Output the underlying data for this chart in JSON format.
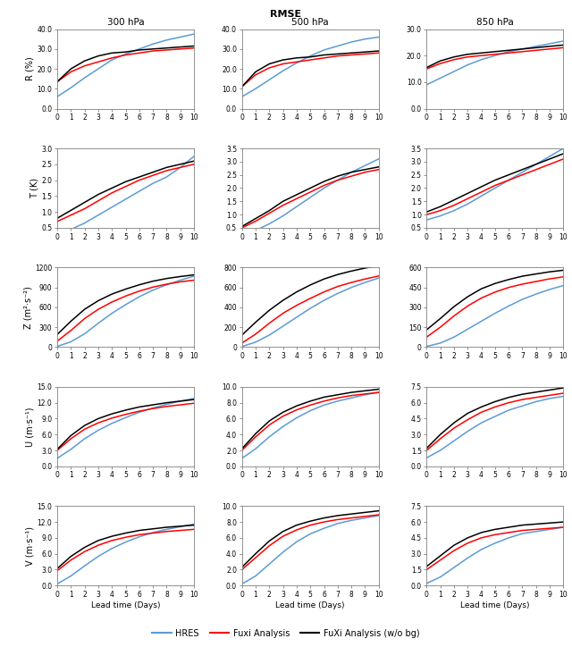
{
  "title": "RMSE",
  "columns": [
    "300 hPa",
    "500 hPa",
    "850 hPa"
  ],
  "rows": [
    "R (%)",
    "T (K)",
    "Z (m²·s⁻²)",
    "U (m·s⁻¹)",
    "V (m·s⁻¹)"
  ],
  "x": [
    0,
    1,
    2,
    3,
    4,
    5,
    6,
    7,
    8,
    9,
    10
  ],
  "data": {
    "R": {
      "300hPa": {
        "HRES": [
          6.0,
          10.5,
          15.5,
          20.0,
          24.5,
          27.5,
          30.0,
          32.5,
          34.5,
          36.0,
          37.5
        ],
        "Fuxi": [
          13.5,
          18.5,
          21.5,
          23.5,
          25.5,
          27.0,
          28.0,
          29.0,
          29.5,
          30.0,
          30.5
        ],
        "FuXi_wbg": [
          13.5,
          20.0,
          24.0,
          26.5,
          28.0,
          28.5,
          29.5,
          30.0,
          30.5,
          31.0,
          31.5
        ],
        "ylim": [
          0.0,
          40.0
        ],
        "yticks": [
          0.0,
          10.0,
          20.0,
          30.0,
          40.0
        ]
      },
      "500hPa": {
        "HRES": [
          6.0,
          10.0,
          14.5,
          19.0,
          23.0,
          26.5,
          29.5,
          31.5,
          33.5,
          35.0,
          36.0
        ],
        "Fuxi": [
          11.0,
          17.0,
          20.5,
          22.5,
          23.5,
          24.5,
          25.5,
          26.5,
          27.0,
          27.5,
          28.0
        ],
        "FuXi_wbg": [
          11.0,
          18.5,
          22.5,
          24.5,
          25.5,
          26.0,
          27.0,
          27.5,
          28.0,
          28.5,
          29.0
        ],
        "ylim": [
          0.0,
          40.0
        ],
        "yticks": [
          0.0,
          10.0,
          20.0,
          30.0,
          40.0
        ]
      },
      "850hPa": {
        "HRES": [
          9.0,
          11.5,
          14.0,
          16.5,
          18.5,
          20.0,
          21.5,
          22.5,
          23.5,
          24.5,
          25.5
        ],
        "Fuxi": [
          15.0,
          17.0,
          18.5,
          19.5,
          20.0,
          20.5,
          21.0,
          21.5,
          22.0,
          22.5,
          23.0
        ],
        "FuXi_wbg": [
          15.5,
          18.0,
          19.5,
          20.5,
          21.0,
          21.5,
          22.0,
          22.5,
          23.0,
          23.5,
          24.0
        ],
        "ylim": [
          0.0,
          30.0
        ],
        "yticks": [
          0.0,
          10.0,
          20.0,
          30.0
        ]
      }
    },
    "T": {
      "300hPa": {
        "HRES": [
          0.25,
          0.45,
          0.65,
          0.9,
          1.15,
          1.4,
          1.65,
          1.9,
          2.1,
          2.4,
          2.75
        ],
        "Fuxi": [
          0.7,
          0.9,
          1.1,
          1.35,
          1.6,
          1.8,
          2.0,
          2.15,
          2.3,
          2.4,
          2.5
        ],
        "FuXi_wbg": [
          0.8,
          1.05,
          1.3,
          1.55,
          1.75,
          1.95,
          2.1,
          2.25,
          2.4,
          2.5,
          2.6
        ],
        "ylim": [
          0.5,
          3.0
        ],
        "yticks": [
          0.5,
          1.0,
          1.5,
          2.0,
          2.5,
          3.0
        ]
      },
      "500hPa": {
        "HRES": [
          0.2,
          0.4,
          0.65,
          0.95,
          1.3,
          1.65,
          2.0,
          2.3,
          2.6,
          2.85,
          3.1
        ],
        "Fuxi": [
          0.5,
          0.75,
          1.05,
          1.35,
          1.6,
          1.85,
          2.1,
          2.3,
          2.45,
          2.6,
          2.7
        ],
        "FuXi_wbg": [
          0.55,
          0.85,
          1.15,
          1.5,
          1.75,
          2.0,
          2.25,
          2.45,
          2.6,
          2.7,
          2.8
        ],
        "ylim": [
          0.5,
          3.5
        ],
        "yticks": [
          0.5,
          1.0,
          1.5,
          2.0,
          2.5,
          3.0,
          3.5
        ]
      },
      "850hPa": {
        "HRES": [
          0.8,
          0.95,
          1.15,
          1.4,
          1.7,
          2.0,
          2.3,
          2.6,
          2.9,
          3.2,
          3.5
        ],
        "Fuxi": [
          1.0,
          1.15,
          1.35,
          1.6,
          1.85,
          2.1,
          2.3,
          2.5,
          2.7,
          2.9,
          3.1
        ],
        "FuXi_wbg": [
          1.1,
          1.3,
          1.55,
          1.8,
          2.05,
          2.3,
          2.5,
          2.7,
          2.9,
          3.1,
          3.3
        ],
        "ylim": [
          0.5,
          3.5
        ],
        "yticks": [
          0.5,
          1.0,
          1.5,
          2.0,
          2.5,
          3.0,
          3.5
        ]
      }
    },
    "Z": {
      "300hPa": {
        "HRES": [
          10,
          80,
          200,
          360,
          510,
          640,
          760,
          860,
          940,
          1010,
          1070
        ],
        "Fuxi": [
          90,
          250,
          430,
          570,
          680,
          770,
          845,
          905,
          950,
          985,
          1010
        ],
        "FuXi_wbg": [
          190,
          390,
          570,
          700,
          800,
          875,
          940,
          995,
          1035,
          1065,
          1090
        ],
        "ylim": [
          0,
          1200
        ],
        "yticks": [
          0,
          300,
          600,
          900,
          1200
        ]
      },
      "500hPa": {
        "HRES": [
          5,
          50,
          120,
          210,
          300,
          390,
          470,
          540,
          600,
          650,
          695
        ],
        "Fuxi": [
          40,
          130,
          240,
          340,
          420,
          490,
          555,
          610,
          650,
          685,
          715
        ],
        "FuXi_wbg": [
          120,
          250,
          370,
          470,
          555,
          625,
          685,
          730,
          765,
          795,
          820
        ],
        "ylim": [
          0,
          800
        ],
        "yticks": [
          0,
          200,
          400,
          600,
          800
        ]
      },
      "850hPa": {
        "HRES": [
          5,
          30,
          75,
          135,
          195,
          255,
          310,
          360,
          400,
          435,
          465
        ],
        "Fuxi": [
          75,
          150,
          235,
          310,
          370,
          415,
          450,
          475,
          495,
          515,
          530
        ],
        "FuXi_wbg": [
          130,
          215,
          305,
          380,
          440,
          480,
          510,
          535,
          552,
          568,
          580
        ],
        "ylim": [
          0,
          600
        ],
        "yticks": [
          0,
          150,
          300,
          450,
          600
        ]
      }
    },
    "U": {
      "300hPa": {
        "HRES": [
          1.5,
          3.2,
          5.2,
          6.8,
          8.1,
          9.2,
          10.2,
          11.0,
          11.7,
          12.3,
          12.8
        ],
        "Fuxi": [
          3.0,
          5.2,
          7.0,
          8.2,
          9.1,
          9.8,
          10.4,
          10.9,
          11.3,
          11.6,
          11.9
        ],
        "FuXi_wbg": [
          3.2,
          5.8,
          7.7,
          9.0,
          9.9,
          10.6,
          11.2,
          11.6,
          12.0,
          12.3,
          12.6
        ],
        "ylim": [
          0,
          15.0
        ],
        "yticks": [
          0,
          3.0,
          6.0,
          9.0,
          12.0,
          15.0
        ]
      },
      "500hPa": {
        "HRES": [
          1.0,
          2.2,
          3.7,
          5.0,
          6.1,
          7.0,
          7.7,
          8.2,
          8.6,
          9.0,
          9.3
        ],
        "Fuxi": [
          2.0,
          3.7,
          5.2,
          6.3,
          7.1,
          7.7,
          8.2,
          8.6,
          8.9,
          9.1,
          9.3
        ],
        "FuXi_wbg": [
          2.2,
          4.1,
          5.7,
          6.8,
          7.6,
          8.2,
          8.7,
          9.0,
          9.3,
          9.5,
          9.7
        ],
        "ylim": [
          0,
          10.0
        ],
        "yticks": [
          0,
          2.0,
          4.0,
          6.0,
          8.0,
          10.0
        ]
      },
      "850hPa": {
        "HRES": [
          0.8,
          1.5,
          2.4,
          3.3,
          4.1,
          4.7,
          5.3,
          5.7,
          6.1,
          6.4,
          6.6
        ],
        "Fuxi": [
          1.5,
          2.6,
          3.6,
          4.4,
          5.1,
          5.6,
          6.0,
          6.3,
          6.5,
          6.7,
          6.9
        ],
        "FuXi_wbg": [
          1.7,
          3.0,
          4.1,
          5.0,
          5.6,
          6.1,
          6.5,
          6.8,
          7.0,
          7.2,
          7.4
        ],
        "ylim": [
          0,
          7.5
        ],
        "yticks": [
          0,
          1.5,
          3.0,
          4.5,
          6.0,
          7.5
        ]
      }
    },
    "V": {
      "300hPa": {
        "HRES": [
          0.3,
          1.8,
          3.7,
          5.5,
          7.0,
          8.2,
          9.2,
          10.0,
          10.6,
          11.1,
          11.6
        ],
        "Fuxi": [
          2.8,
          4.8,
          6.4,
          7.6,
          8.5,
          9.1,
          9.6,
          9.9,
          10.2,
          10.4,
          10.6
        ],
        "FuXi_wbg": [
          3.2,
          5.5,
          7.2,
          8.5,
          9.3,
          9.9,
          10.4,
          10.7,
          11.0,
          11.2,
          11.4
        ],
        "ylim": [
          0,
          15.0
        ],
        "yticks": [
          0,
          3.0,
          6.0,
          9.0,
          12.0,
          15.0
        ]
      },
      "500hPa": {
        "HRES": [
          0.2,
          1.2,
          2.7,
          4.2,
          5.5,
          6.5,
          7.2,
          7.8,
          8.2,
          8.5,
          8.8
        ],
        "Fuxi": [
          2.0,
          3.5,
          5.0,
          6.2,
          7.0,
          7.6,
          8.0,
          8.3,
          8.5,
          8.7,
          8.9
        ],
        "FuXi_wbg": [
          2.3,
          4.0,
          5.6,
          6.8,
          7.6,
          8.1,
          8.5,
          8.8,
          9.0,
          9.2,
          9.4
        ],
        "ylim": [
          0,
          10.0
        ],
        "yticks": [
          0,
          2.0,
          4.0,
          6.0,
          8.0,
          10.0
        ]
      },
      "850hPa": {
        "HRES": [
          0.2,
          0.8,
          1.7,
          2.6,
          3.4,
          4.0,
          4.5,
          4.9,
          5.1,
          5.3,
          5.5
        ],
        "Fuxi": [
          1.5,
          2.4,
          3.3,
          4.0,
          4.5,
          4.8,
          5.0,
          5.2,
          5.3,
          5.4,
          5.5
        ],
        "FuXi_wbg": [
          1.8,
          2.8,
          3.8,
          4.5,
          5.0,
          5.3,
          5.5,
          5.7,
          5.8,
          5.9,
          6.0
        ],
        "ylim": [
          0,
          7.5
        ],
        "yticks": [
          0,
          1.5,
          3.0,
          4.5,
          6.0,
          7.5
        ]
      }
    }
  }
}
